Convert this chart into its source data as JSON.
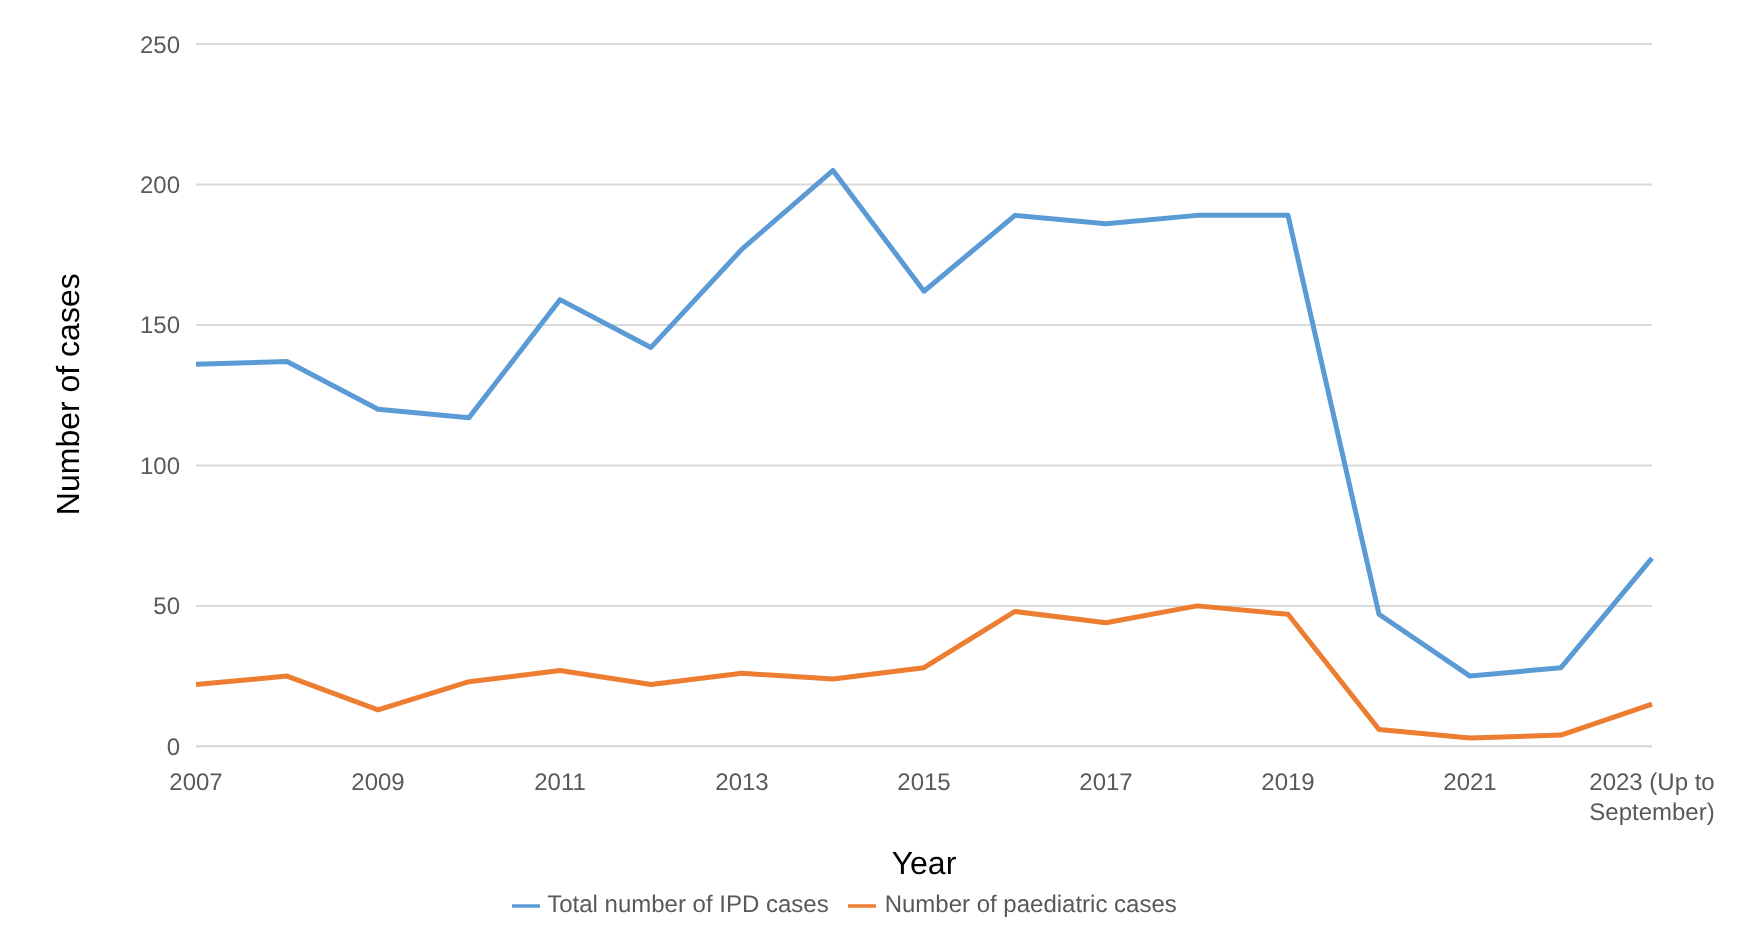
{
  "chart_data": {
    "type": "line",
    "xlabel": "Year",
    "ylabel": "Number of cases",
    "categories": [
      "2007",
      null,
      "2009",
      null,
      "2011",
      null,
      "2013",
      null,
      "2015",
      null,
      "2017",
      null,
      "2019",
      null,
      "2021",
      null,
      "2023 (Up to September)"
    ],
    "series": [
      {
        "name": "Total number of IPD cases",
        "color": "#5b9bd5",
        "values": [
          136,
          137,
          120,
          117,
          159,
          142,
          177,
          205,
          162,
          189,
          186,
          189,
          189,
          47,
          25,
          28,
          67
        ]
      },
      {
        "name": "Number of paediatric cases",
        "color": "#ed7d31",
        "values": [
          22,
          25,
          13,
          23,
          27,
          22,
          26,
          24,
          28,
          48,
          44,
          50,
          47,
          6,
          3,
          4,
          15
        ]
      }
    ],
    "ylim": [
      0,
      250
    ],
    "yticks": [
      0,
      50,
      100,
      150,
      200,
      250
    ],
    "grid": "y",
    "legend": "bottom",
    "marker": "none",
    "line_style": "solid"
  }
}
